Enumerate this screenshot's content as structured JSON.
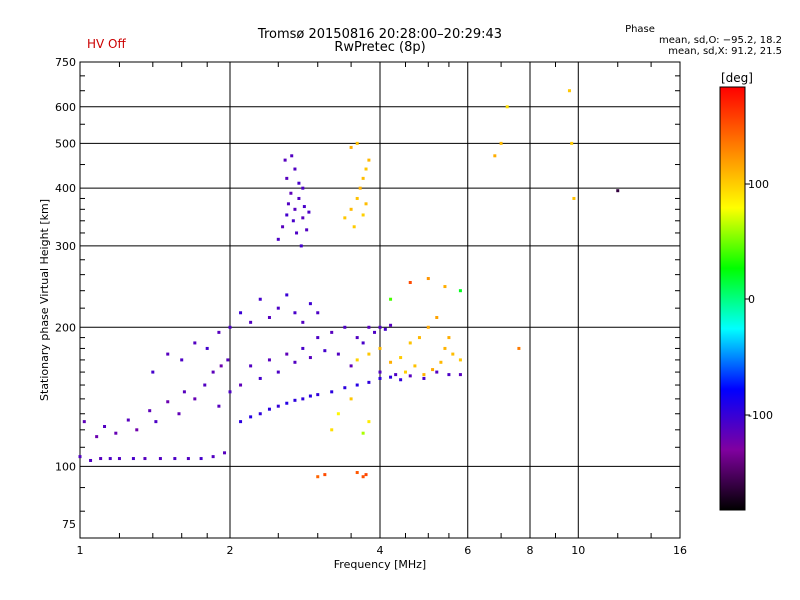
{
  "header": {
    "status": "HV Off",
    "title_line1": "Tromsø 20150816 20:28:00–20:29:43",
    "title_line2": "RwPretec (8p)",
    "stats_heading": "Phase",
    "stats_o": "mean, sd,O: −95.2, 18.2",
    "stats_x": "mean, sd,X:  91.2, 21.5"
  },
  "colorbar": {
    "label": "[deg]",
    "ticks": [
      "100",
      "0",
      "-100"
    ],
    "colors": [
      "#ff0000",
      "#ff8000",
      "#ffff00",
      "#00ff00",
      "#00ffff",
      "#0000ff",
      "#8000a0",
      "#000000"
    ]
  },
  "chart_data": {
    "type": "scatter",
    "xlabel": "Frequency [MHz]",
    "ylabel": "Stationary phase Virtual Height [km]",
    "x_scale": "log",
    "y_scale": "log",
    "xlim": [
      1,
      16
    ],
    "ylim": [
      70,
      750
    ],
    "x_ticks": [
      {
        "value": 1,
        "label": "1"
      },
      {
        "value": 2,
        "label": "2"
      },
      {
        "value": 4,
        "label": "4"
      },
      {
        "value": 6,
        "label": "6"
      },
      {
        "value": 8,
        "label": "8"
      },
      {
        "value": 10,
        "label": "10"
      },
      {
        "value": 16,
        "label": "16"
      }
    ],
    "y_ticks": [
      {
        "value": 75,
        "label": "75"
      },
      {
        "value": 100,
        "label": "100"
      },
      {
        "value": 200,
        "label": "200"
      },
      {
        "value": 300,
        "label": "300"
      },
      {
        "value": 400,
        "label": "400"
      },
      {
        "value": 500,
        "label": "500"
      },
      {
        "value": 600,
        "label": "600"
      },
      {
        "value": 750,
        "label": "750"
      }
    ],
    "grid_x": [
      2,
      4,
      6,
      8,
      10
    ],
    "grid_y": [
      100,
      200,
      300,
      400,
      500,
      600
    ],
    "color_scale": {
      "min": -180,
      "max": 180,
      "label": "Phase [deg]"
    },
    "series": [
      {
        "x": [
          1.0,
          1.05,
          1.1,
          1.15,
          1.2,
          1.28,
          1.35,
          1.45,
          1.55,
          1.65,
          1.75,
          1.85,
          1.95
        ],
        "y": [
          105,
          103,
          104,
          104,
          104,
          104,
          104,
          104,
          104,
          104,
          104,
          105,
          107
        ],
        "c": [
          -110,
          -110,
          -112,
          -108,
          -110,
          -106,
          -112,
          -110,
          -108,
          -110,
          -105,
          -110,
          -112
        ]
      },
      {
        "x": [
          1.02,
          1.08,
          1.12,
          1.18,
          1.25,
          1.3,
          1.38,
          1.42,
          1.5,
          1.58,
          1.62,
          1.7,
          1.78,
          1.85,
          1.92,
          1.98
        ],
        "y": [
          125,
          116,
          122,
          118,
          126,
          120,
          132,
          125,
          138,
          130,
          145,
          140,
          150,
          160,
          165,
          170
        ],
        "c": [
          -115,
          -120,
          -110,
          -118,
          -112,
          -122,
          -115,
          -108,
          -120,
          -116,
          -112,
          -118,
          -110,
          -114,
          -120,
          -112
        ]
      },
      {
        "x": [
          1.4,
          1.5,
          1.6,
          1.7,
          1.8,
          1.9,
          2.0,
          2.1,
          2.2,
          2.3,
          2.4,
          2.5,
          2.6,
          2.7,
          2.8,
          2.9,
          3.0
        ],
        "y": [
          160,
          175,
          170,
          185,
          180,
          195,
          200,
          215,
          205,
          230,
          210,
          220,
          235,
          215,
          205,
          225,
          215
        ],
        "c": [
          -105,
          -112,
          -108,
          -110,
          -104,
          -112,
          -108,
          -100,
          -110,
          -105,
          -112,
          -108,
          -100,
          -106,
          -110,
          -102,
          -108
        ]
      },
      {
        "x": [
          1.9,
          2.0,
          2.1,
          2.2,
          2.3,
          2.4,
          2.5,
          2.6,
          2.7,
          2.8,
          2.9,
          3.0,
          3.1,
          3.2,
          3.3,
          3.4,
          3.5,
          3.6,
          3.7,
          3.8,
          3.9,
          4.0,
          4.1,
          4.2
        ],
        "y": [
          135,
          145,
          150,
          165,
          155,
          170,
          160,
          175,
          168,
          180,
          172,
          190,
          178,
          195,
          175,
          200,
          165,
          190,
          185,
          200,
          195,
          200,
          198,
          202
        ],
        "c": [
          -112,
          -108,
          -115,
          -110,
          -105,
          -112,
          -108,
          -115,
          -110,
          -106,
          -112,
          -108,
          -104,
          -112,
          -110,
          -108,
          -115,
          -110,
          -106,
          -112,
          -108,
          -110,
          -105,
          -112
        ]
      },
      {
        "x": [
          2.1,
          2.2,
          2.3,
          2.4,
          2.5,
          2.6,
          2.7,
          2.8,
          2.9,
          3.0,
          3.2,
          3.4,
          3.6,
          3.8,
          4.0,
          4.2,
          4.4
        ],
        "y": [
          125,
          128,
          130,
          133,
          135,
          137,
          139,
          140,
          142,
          143,
          145,
          148,
          150,
          152,
          155,
          156,
          154
        ],
        "c": [
          -95,
          -92,
          -96,
          -94,
          -98,
          -92,
          -95,
          -96,
          -93,
          -97,
          -94,
          -95,
          -92,
          -96,
          -95,
          -94,
          -97
        ]
      },
      {
        "x": [
          2.5,
          2.55,
          2.6,
          2.62,
          2.65,
          2.68,
          2.7,
          2.72,
          2.75,
          2.78,
          2.8,
          2.82,
          2.85,
          2.88,
          2.6,
          2.7,
          2.75,
          2.8,
          2.58,
          2.66
        ],
        "y": [
          310,
          330,
          350,
          370,
          390,
          340,
          360,
          320,
          380,
          300,
          345,
          365,
          325,
          355,
          420,
          440,
          410,
          400,
          460,
          470
        ],
        "c": [
          -108,
          -112,
          -104,
          -110,
          -115,
          -106,
          -112,
          -108,
          -110,
          -104,
          -112,
          -106,
          -110,
          -108,
          -112,
          -110,
          -106,
          -108,
          -112,
          -110
        ]
      },
      {
        "x": [
          3.4,
          3.5,
          3.55,
          3.6,
          3.65,
          3.7,
          3.75,
          3.8,
          3.5,
          3.6,
          3.7,
          3.75
        ],
        "y": [
          345,
          360,
          330,
          380,
          400,
          420,
          440,
          460,
          490,
          500,
          350,
          370
        ],
        "c": [
          100,
          105,
          98,
          102,
          108,
          104,
          100,
          106,
          110,
          102,
          96,
          104
        ]
      },
      {
        "x": [
          3.6,
          3.8,
          4.0,
          4.2,
          4.4,
          4.6,
          4.8,
          5.0,
          5.2,
          5.4,
          5.6,
          5.8,
          4.5,
          4.7,
          4.9,
          5.1,
          5.3,
          5.5
        ],
        "y": [
          170,
          175,
          180,
          168,
          172,
          185,
          190,
          200,
          210,
          180,
          175,
          170,
          160,
          165,
          158,
          162,
          168,
          190
        ],
        "c": [
          95,
          100,
          105,
          110,
          98,
          102,
          106,
          112,
          115,
          108,
          104,
          100,
          96,
          102,
          108,
          112,
          106,
          110
        ]
      },
      {
        "x": [
          4.0,
          4.3,
          4.6,
          4.9,
          5.2,
          5.5,
          5.8
        ],
        "y": [
          160,
          158,
          157,
          155,
          160,
          158,
          158
        ],
        "c": [
          -110,
          -108,
          -112,
          -106,
          -110,
          -108,
          -112
        ]
      },
      {
        "x": [
          3.2,
          3.3,
          3.5,
          3.7,
          3.8,
          4.2,
          4.6,
          5.0,
          5.4,
          5.8
        ],
        "y": [
          120,
          130,
          140,
          118,
          125,
          230,
          250,
          255,
          245,
          240
        ],
        "c": [
          90,
          80,
          100,
          60,
          85,
          40,
          150,
          120,
          110,
          20
        ]
      },
      {
        "x": [
          3.0,
          3.1,
          3.6,
          3.7,
          3.75
        ],
        "y": [
          95,
          96,
          97,
          95,
          96
        ],
        "c": [
          140,
          150,
          145,
          148,
          152
        ]
      },
      {
        "x": [
          6.8,
          7.0,
          7.2,
          9.6,
          9.7,
          9.8,
          7.6,
          12.0
        ],
        "y": [
          470,
          500,
          600,
          650,
          500,
          380,
          180,
          395
        ],
        "c": [
          110,
          105,
          90,
          100,
          98,
          102,
          130,
          -160
        ]
      }
    ]
  }
}
